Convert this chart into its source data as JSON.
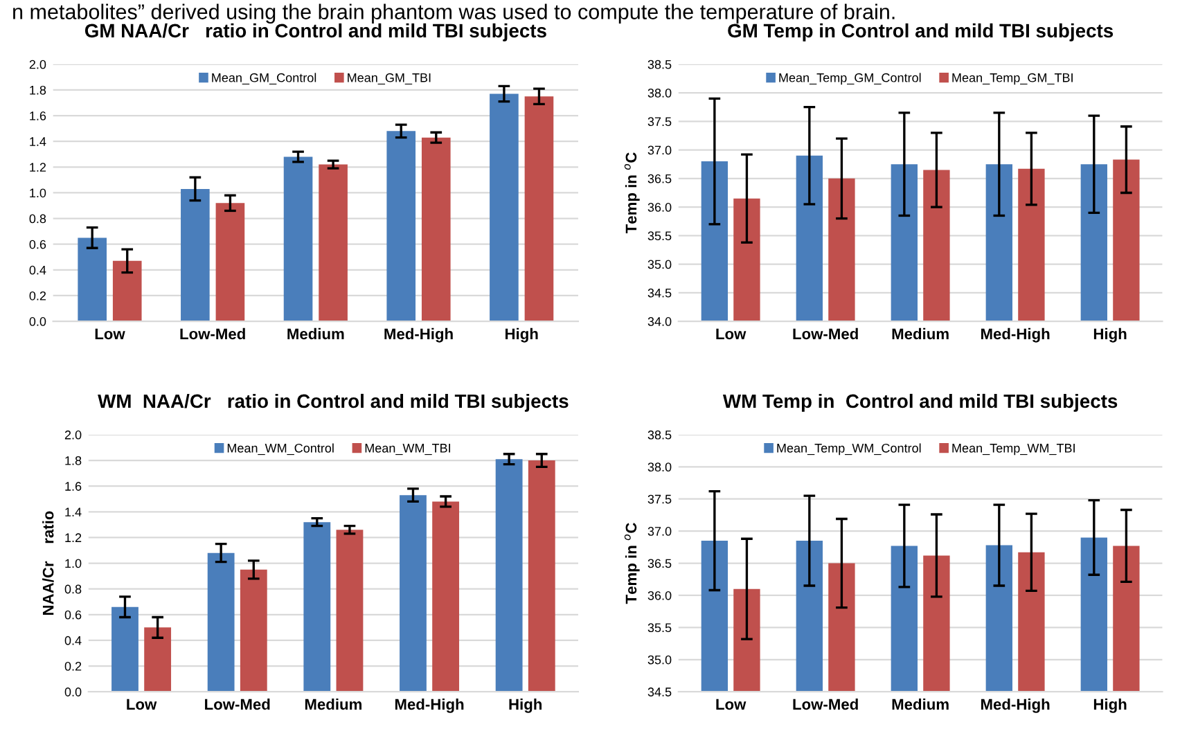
{
  "chart_data": [
    {
      "type": "bar",
      "title": "GM NAA/Cr   ratio in Control and mild TBI subjects",
      "categories": [
        "Low",
        "Low-Med",
        "Medium",
        "Med-High",
        "High"
      ],
      "ylim": [
        0,
        2.0
      ],
      "yticks": [
        {
          "value": 0,
          "label": "0.0"
        },
        0.2,
        0.4,
        0.6,
        0.8,
        {
          "value": 1,
          "label": "1.0"
        },
        1.2,
        1.4,
        1.6,
        1.8,
        {
          "value": 2,
          "label": "2.0"
        }
      ],
      "grid": "y",
      "legend": "top",
      "series": [
        {
          "name": "Mean_GM_Control",
          "color": "#4a7ebb",
          "values": [
            0.65,
            1.03,
            1.28,
            1.48,
            1.77
          ],
          "errors": [
            0.08,
            0.09,
            0.04,
            0.05,
            0.06
          ]
        },
        {
          "name": "Mean_GM_TBI",
          "color": "#c0504d",
          "values": [
            0.47,
            0.92,
            1.22,
            1.43,
            1.75
          ],
          "errors": [
            0.09,
            0.06,
            0.03,
            0.04,
            0.06
          ]
        }
      ],
      "annotations": [
        "n metabolites” derived using the brain phantom was used to compute the temperature of brain."
      ]
    },
    {
      "type": "bar",
      "title": "GM Temp in Control and mild TBI subjects",
      "ylabel": "Temp in $^{o}$C",
      "categories": [
        "Low",
        "Low-Med",
        "Medium",
        "Med-High",
        "High"
      ],
      "ylim": [
        34.0,
        38.5
      ],
      "yticks": [
        {
          "value": 34,
          "label": "34.0"
        },
        34.5,
        {
          "value": 35,
          "label": "35.0"
        },
        35.5,
        {
          "value": 36,
          "label": "36.0"
        },
        36.5,
        {
          "value": 37,
          "label": "37.0"
        },
        37.5,
        {
          "value": 38,
          "label": "38.0"
        },
        38.5
      ],
      "grid": "y",
      "legend": "top",
      "series": [
        {
          "name": "Mean_Temp_GM_Control",
          "color": "#4a7ebb",
          "values": [
            36.8,
            36.9,
            36.75,
            36.75,
            36.75
          ],
          "errors": [
            1.1,
            0.85,
            0.9,
            0.9,
            0.85
          ]
        },
        {
          "name": "Mean_Temp_GM_TBI",
          "color": "#c0504d",
          "values": [
            36.15,
            36.5,
            36.65,
            36.67,
            36.83
          ],
          "errors": [
            0.77,
            0.7,
            0.65,
            0.63,
            0.58
          ]
        }
      ]
    },
    {
      "type": "bar",
      "title": "WM  NAA/Cr   ratio in Control and mild TBI subjects",
      "ylabel": "NAA/Cr    ratio",
      "categories": [
        "Low",
        "Low-Med",
        "Medium",
        "Med-High",
        "High"
      ],
      "ylim": [
        0,
        2.0
      ],
      "yticks": [
        {
          "value": 0,
          "label": "0.0"
        },
        0.2,
        0.4,
        0.6,
        0.8,
        {
          "value": 1,
          "label": "1.0"
        },
        1.2,
        1.4,
        1.6,
        1.8,
        {
          "value": 2,
          "label": "2.0"
        }
      ],
      "grid": "y",
      "legend": "top",
      "series": [
        {
          "name": "Mean_WM_Control",
          "color": "#4a7ebb",
          "values": [
            0.66,
            1.08,
            1.32,
            1.53,
            1.81
          ],
          "errors": [
            0.08,
            0.07,
            0.03,
            0.05,
            0.04
          ]
        },
        {
          "name": "Mean_WM_TBI",
          "color": "#c0504d",
          "values": [
            0.5,
            0.95,
            1.26,
            1.48,
            1.8
          ],
          "errors": [
            0.08,
            0.07,
            0.03,
            0.04,
            0.05
          ]
        }
      ]
    },
    {
      "type": "bar",
      "title": "WM Temp in  Control and mild TBI subjects",
      "ylabel": "Temp in $^{o}$C",
      "categories": [
        "Low",
        "Low-Med",
        "Medium",
        "Med-High",
        "High"
      ],
      "ylim": [
        34.5,
        38.5
      ],
      "yticks": [
        34.5,
        {
          "value": 35,
          "label": "35.0"
        },
        35.5,
        {
          "value": 36,
          "label": "36.0"
        },
        36.5,
        {
          "value": 37,
          "label": "37.0"
        },
        37.5,
        {
          "value": 38,
          "label": "38.0"
        },
        38.5
      ],
      "grid": "y",
      "legend": "top",
      "series": [
        {
          "name": "Mean_Temp_WM_Control",
          "color": "#4a7ebb",
          "values": [
            36.85,
            36.85,
            36.77,
            36.78,
            36.9
          ],
          "errors": [
            0.77,
            0.7,
            0.64,
            0.63,
            0.58
          ]
        },
        {
          "name": "Mean_Temp_WM_TBI",
          "color": "#c0504d",
          "values": [
            36.1,
            36.5,
            36.62,
            36.67,
            36.77
          ],
          "errors": [
            0.78,
            0.69,
            0.64,
            0.6,
            0.56
          ]
        }
      ]
    }
  ]
}
